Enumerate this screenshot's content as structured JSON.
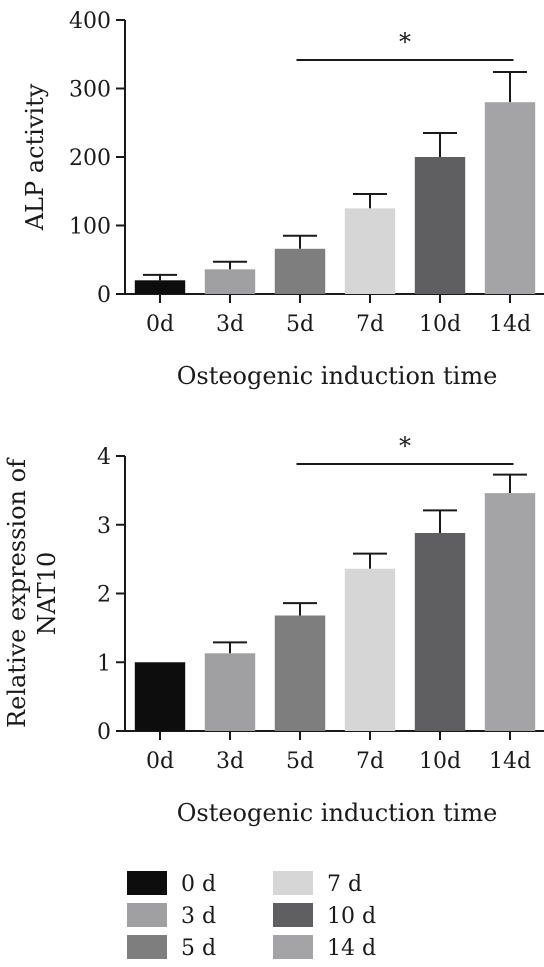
{
  "chart_data": [
    {
      "type": "bar",
      "xlabel": "Osteogenic induction time",
      "ylabel": "ALP activity",
      "ylim": [
        0,
        400
      ],
      "yticks": [
        0,
        100,
        200,
        300,
        400
      ],
      "categories": [
        "0d",
        "3d",
        "5d",
        "7d",
        "10d",
        "14d"
      ],
      "values": [
        20,
        36,
        66,
        125,
        200,
        280
      ],
      "errors": [
        8,
        11,
        19,
        21,
        35,
        44
      ],
      "significance": {
        "label": "*",
        "from": "5d",
        "to": "14d"
      },
      "colors": [
        "#0d0d0d",
        "#a0a0a2",
        "#7e7e7e",
        "#d6d6d6",
        "#5f5f61",
        "#a4a4a6"
      ]
    },
    {
      "type": "bar",
      "xlabel": "Osteogenic induction time",
      "ylabel_lines": [
        "Relative expression of",
        "NAT10"
      ],
      "ylim": [
        0,
        4
      ],
      "yticks": [
        0,
        1,
        2,
        3,
        4
      ],
      "categories": [
        "0d",
        "3d",
        "5d",
        "7d",
        "10d",
        "14d"
      ],
      "values": [
        1.0,
        1.13,
        1.68,
        2.36,
        2.88,
        3.46
      ],
      "errors": [
        0.0,
        0.16,
        0.18,
        0.22,
        0.33,
        0.27
      ],
      "significance": {
        "label": "*",
        "from": "5d",
        "to": "14d"
      },
      "colors": [
        "#0d0d0d",
        "#a0a0a2",
        "#7e7e7e",
        "#d6d6d6",
        "#5f5f61",
        "#a4a4a6"
      ]
    }
  ],
  "legend": [
    {
      "label": "0 d",
      "color": "#0d0d0d"
    },
    {
      "label": "3 d",
      "color": "#a0a0a2"
    },
    {
      "label": "5 d",
      "color": "#7e7e7e"
    },
    {
      "label": "7 d",
      "color": "#d6d6d6"
    },
    {
      "label": "10 d",
      "color": "#5f5f61"
    },
    {
      "label": "14 d",
      "color": "#a4a4a6"
    }
  ]
}
